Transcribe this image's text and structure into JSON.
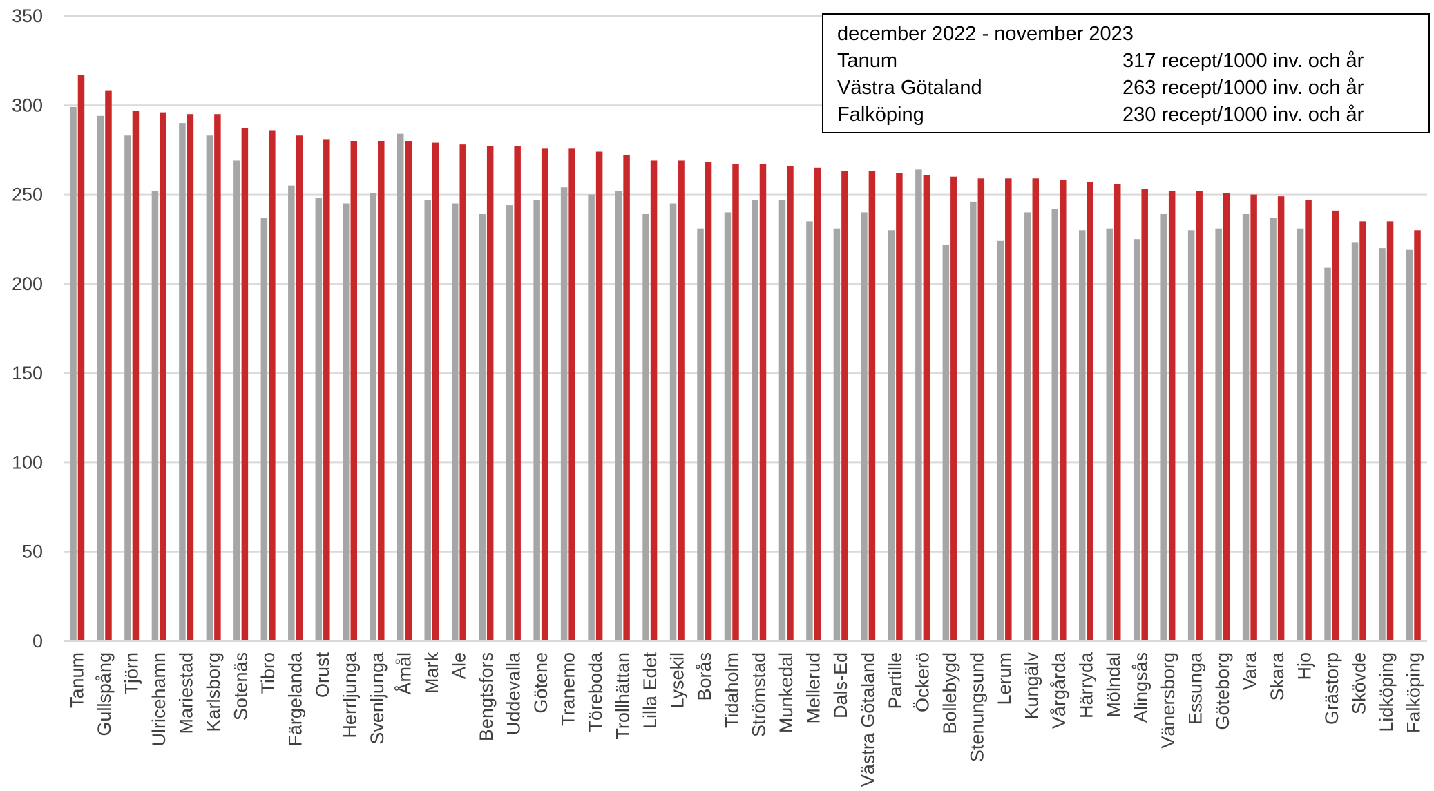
{
  "chart_data": {
    "type": "bar",
    "title": "",
    "xlabel": "",
    "ylabel": "",
    "ylim": [
      0,
      350
    ],
    "yticks": [
      "0",
      "50",
      "100",
      "150",
      "200",
      "250",
      "300",
      "350"
    ],
    "grid": true,
    "legend": "none",
    "categories": [
      "Tanum",
      "Gullspång",
      "Tjörn",
      "Ulricehamn",
      "Mariestad",
      "Karlsborg",
      "Sotenäs",
      "Tibro",
      "Färgelanda",
      "Orust",
      "Herrljunga",
      "Svenljunga",
      "Åmål",
      "Mark",
      "Ale",
      "Bengtsfors",
      "Uddevalla",
      "Götene",
      "Tranemo",
      "Töreboda",
      "Trollhättan",
      "Lilla Edet",
      "Lysekil",
      "Borås",
      "Tidaholm",
      "Strömstad",
      "Munkedal",
      "Mellerud",
      "Dals-Ed",
      "Västra Götaland",
      "Partille",
      "Öckerö",
      "Bollebygd",
      "Stenungsund",
      "Lerum",
      "Kungälv",
      "Vårgårda",
      "Härryda",
      "Mölndal",
      "Alingsås",
      "Vänersborg",
      "Essunga",
      "Göteborg",
      "Vara",
      "Skara",
      "Hjo",
      "Grästorp",
      "Skövde",
      "Lidköping",
      "Falköping"
    ],
    "series": [
      {
        "color": "#a6a6a6",
        "values": [
          299,
          294,
          283,
          252,
          290,
          283,
          269,
          237,
          255,
          248,
          245,
          251,
          284,
          247,
          245,
          239,
          244,
          247,
          254,
          250,
          252,
          239,
          245,
          231,
          240,
          247,
          247,
          235,
          231,
          240,
          230,
          264,
          222,
          246,
          224,
          240,
          242,
          230,
          231,
          225,
          239,
          230,
          231,
          239,
          237,
          231,
          209,
          223,
          220,
          219
        ]
      },
      {
        "color": "#c9282a",
        "values": [
          317,
          308,
          297,
          296,
          295,
          295,
          287,
          286,
          283,
          281,
          280,
          280,
          280,
          279,
          278,
          277,
          277,
          276,
          276,
          274,
          272,
          269,
          269,
          268,
          267,
          267,
          266,
          265,
          263,
          263,
          262,
          261,
          260,
          259,
          259,
          259,
          258,
          257,
          256,
          253,
          252,
          252,
          251,
          250,
          249,
          247,
          241,
          235,
          235,
          230
        ]
      }
    ],
    "annotation_box": {
      "heading": "december 2022 - november 2023",
      "rows": [
        {
          "label": "Tanum",
          "value": "317 recept/1000 inv. och år"
        },
        {
          "label": "Västra Götaland",
          "value": "263 recept/1000 inv. och år"
        },
        {
          "label": "Falköping",
          "value": "230 recept/1000 inv. och år"
        }
      ]
    }
  }
}
